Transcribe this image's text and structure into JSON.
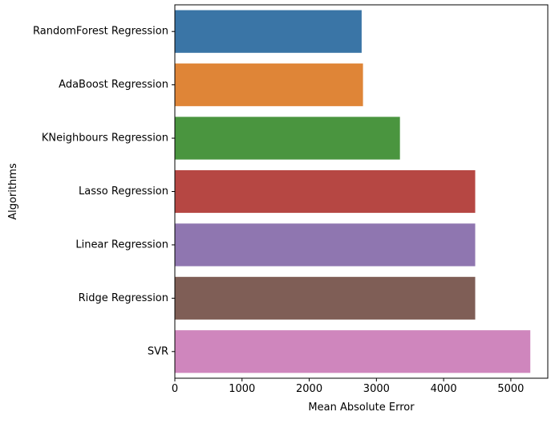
{
  "chart_data": {
    "type": "bar",
    "orientation": "horizontal",
    "title": "",
    "xlabel": "Mean Absolute Error",
    "ylabel": "Algorithms",
    "xlim": [
      0,
      5550
    ],
    "xticks": [
      0,
      1000,
      2000,
      3000,
      4000,
      5000
    ],
    "xtick_labels": [
      "0",
      "1000",
      "2000",
      "3000",
      "4000",
      "5000"
    ],
    "grid": false,
    "legend": "none",
    "categories": [
      "RandomForest Regression",
      "AdaBoost Regression",
      "KNeighbours Regression",
      "Lasso Regression",
      "Linear Regression",
      "Ridge Regression",
      "SVR"
    ],
    "values": [
      2780,
      2800,
      3350,
      4470,
      4470,
      4470,
      5290
    ],
    "colors": [
      "#3a75a6",
      "#df8537",
      "#4a953f",
      "#b64743",
      "#8f76b0",
      "#7f5e56",
      "#cf86bd"
    ]
  }
}
